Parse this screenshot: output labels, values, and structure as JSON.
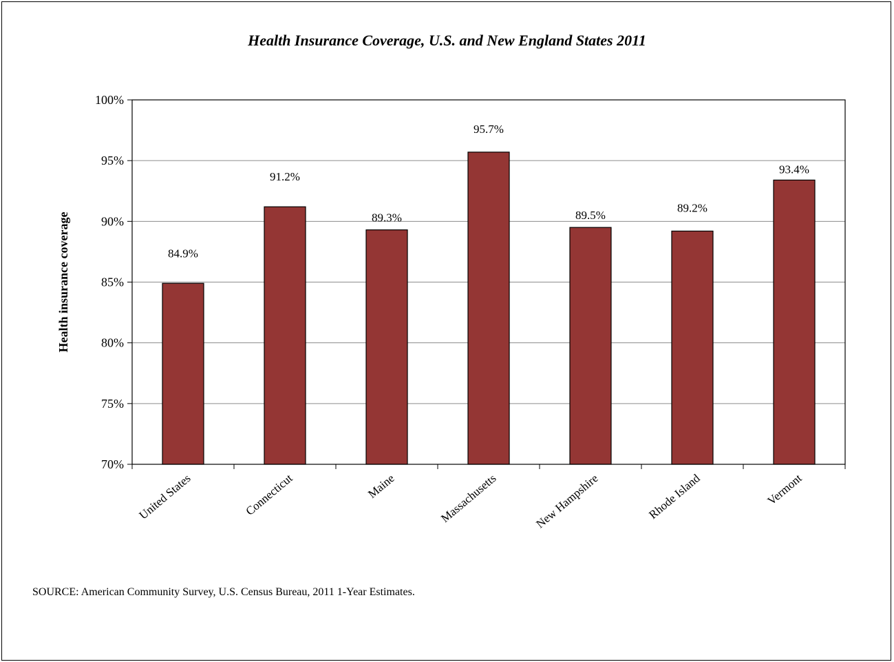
{
  "chart_data": {
    "type": "bar",
    "title": "Health Insurance  Coverage, U.S. and New England States 2011",
    "ylabel": "Health  insurance coverage",
    "xlabel": "",
    "categories": [
      "United States",
      "Connecticut",
      "Maine",
      "Massachusetts",
      "New Hampshire",
      "Rhode Island",
      "Vermont"
    ],
    "values": [
      84.9,
      91.2,
      89.3,
      95.7,
      89.5,
      89.2,
      93.4
    ],
    "data_labels": [
      "84.9%",
      "91.2%",
      "89.3%",
      "95.7%",
      "89.5%",
      "89.2%",
      "93.4%"
    ],
    "ylim": [
      70,
      100
    ],
    "yticks": [
      70,
      75,
      80,
      85,
      90,
      95,
      100
    ],
    "ytick_labels": [
      "70%",
      "75%",
      "80%",
      "85%",
      "90%",
      "95%",
      "100%"
    ],
    "grid": true,
    "legend": "none",
    "bar_color": "#943634"
  },
  "source_note": "SOURCE: American Community Survey, U.S. Census Bureau, 2011 1-Year Estimates."
}
